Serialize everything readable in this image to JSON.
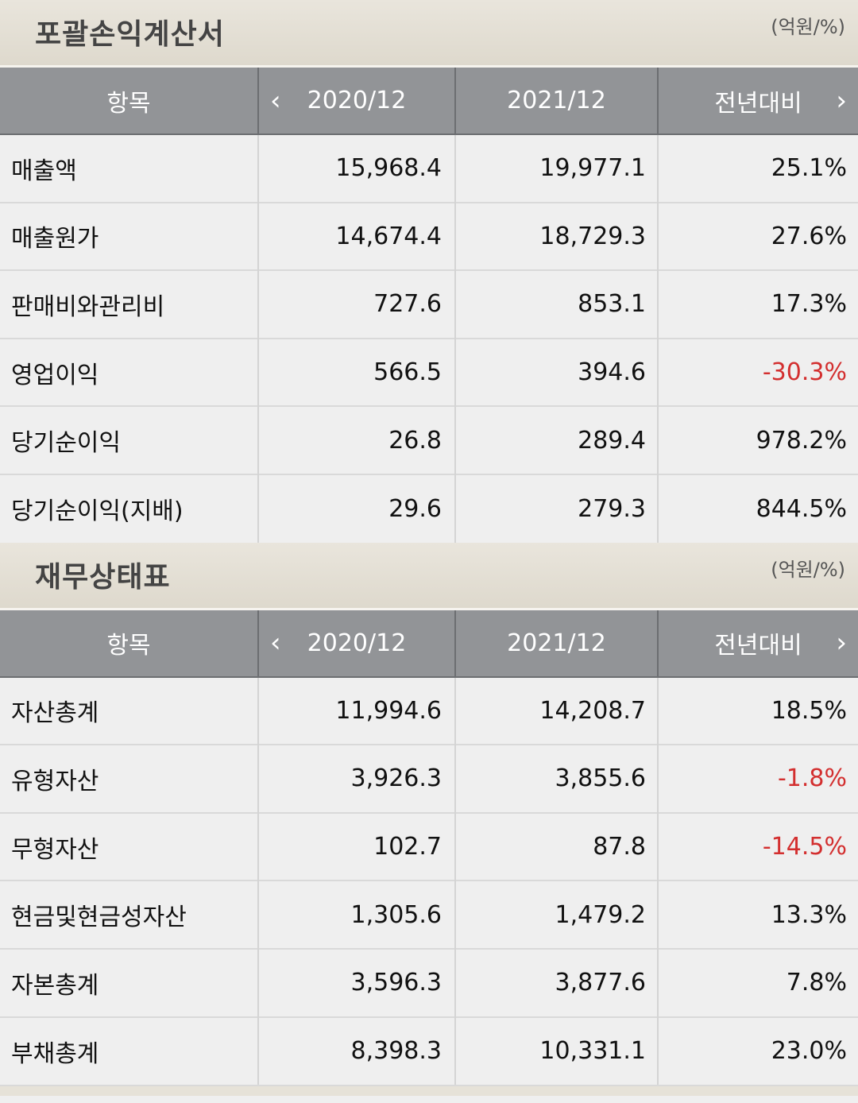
{
  "income": {
    "title": "포괄손익계산서",
    "unit": "(억원/%)",
    "headers": {
      "item": "항목",
      "col1": "2020/12",
      "col2": "2021/12",
      "col3": "전년대비"
    },
    "rows": [
      {
        "name": "매출액",
        "v2020": "15,968.4",
        "v2021": "19,977.1",
        "yoy": "25.1%"
      },
      {
        "name": "매출원가",
        "v2020": "14,674.4",
        "v2021": "18,729.3",
        "yoy": "27.6%"
      },
      {
        "name": "판매비와관리비",
        "v2020": "727.6",
        "v2021": "853.1",
        "yoy": "17.3%"
      },
      {
        "name": "영업이익",
        "v2020": "566.5",
        "v2021": "394.6",
        "yoy": "-30.3%"
      },
      {
        "name": "당기순이익",
        "v2020": "26.8",
        "v2021": "289.4",
        "yoy": "978.2%"
      },
      {
        "name": "당기순이익(지배)",
        "v2020": "29.6",
        "v2021": "279.3",
        "yoy": "844.5%"
      }
    ]
  },
  "balance": {
    "title": "재무상태표",
    "unit": "(억원/%)",
    "headers": {
      "item": "항목",
      "col1": "2020/12",
      "col2": "2021/12",
      "col3": "전년대비"
    },
    "rows": [
      {
        "name": "자산총계",
        "v2020": "11,994.6",
        "v2021": "14,208.7",
        "yoy": "18.5%"
      },
      {
        "name": "유형자산",
        "v2020": "3,926.3",
        "v2021": "3,855.6",
        "yoy": "-1.8%"
      },
      {
        "name": "무형자산",
        "v2020": "102.7",
        "v2021": "87.8",
        "yoy": "-14.5%"
      },
      {
        "name": "현금및현금성자산",
        "v2020": "1,305.6",
        "v2021": "1,479.2",
        "yoy": "13.3%"
      },
      {
        "name": "자본총계",
        "v2020": "3,596.3",
        "v2021": "3,877.6",
        "yoy": "7.8%"
      },
      {
        "name": "부채총계",
        "v2020": "8,398.3",
        "v2021": "10,331.1",
        "yoy": "23.0%"
      }
    ]
  },
  "colors": {
    "header_bg": "#929497",
    "negative": "#d32f2f",
    "section_bg": "#e4e0d6"
  },
  "icons": {
    "prev": "chevron-left-icon",
    "next": "chevron-right-icon"
  }
}
